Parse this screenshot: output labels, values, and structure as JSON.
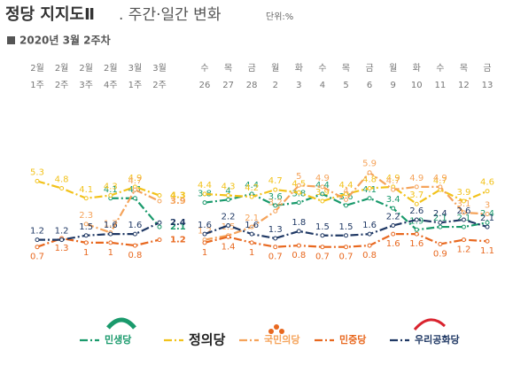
{
  "header": {
    "title": "정당 지지도Ⅱ",
    "subtitle": ". 주간·일간 변화",
    "unit": "단위:%",
    "date": "2020년 3월 2주차"
  },
  "chart_data": [
    {
      "type": "line",
      "categories": [
        [
          "2월",
          "1주"
        ],
        [
          "2월",
          "2주"
        ],
        [
          "2월",
          "3주"
        ],
        [
          "2월",
          "4주"
        ],
        [
          "3월",
          "1주"
        ],
        [
          "3월",
          "2주"
        ]
      ],
      "ylim": [
        0,
        6.5
      ],
      "series": [
        {
          "name": "민생당",
          "color": "#1a9a6c",
          "values": [
            null,
            null,
            null,
            4.1,
            4.1,
            2.1
          ]
        },
        {
          "name": "정의당",
          "color": "#f2c21b",
          "values": [
            5.3,
            4.8,
            4.1,
            4.3,
            4.9,
            4.3
          ]
        },
        {
          "name": "국민의당",
          "color": "#f5a35a",
          "values": [
            null,
            null,
            2.3,
            1.7,
            4.7,
            3.9
          ]
        },
        {
          "name": "민중당",
          "color": "#e8681f",
          "values": [
            0.7,
            1.3,
            1.0,
            1.0,
            0.8,
            1.2
          ]
        },
        {
          "name": "우리공화당",
          "color": "#1f3864",
          "values": [
            1.2,
            1.2,
            1.5,
            1.6,
            1.6,
            2.4
          ]
        }
      ]
    },
    {
      "type": "line",
      "categories": [
        [
          "수",
          "26"
        ],
        [
          "목",
          "27"
        ],
        [
          "금",
          "28"
        ],
        [
          "월",
          "2"
        ],
        [
          "화",
          "3"
        ],
        [
          "수",
          "4"
        ],
        [
          "목",
          "5"
        ],
        [
          "금",
          "6"
        ],
        [
          "월",
          "9"
        ],
        [
          "화",
          "10"
        ],
        [
          "수",
          "11"
        ],
        [
          "목",
          "12"
        ],
        [
          "금",
          "13"
        ]
      ],
      "ylim": [
        0,
        6.5
      ],
      "series": [
        {
          "name": "민생당",
          "color": "#1a9a6c",
          "values": [
            3.8,
            4.0,
            4.4,
            3.6,
            3.8,
            4.4,
            3.6,
            4.1,
            3.4,
            1.9,
            2.1,
            2.1,
            2.4
          ]
        },
        {
          "name": "정의당",
          "color": "#f2c21b",
          "values": [
            4.4,
            4.3,
            4.2,
            4.7,
            4.5,
            3.9,
            4.4,
            4.8,
            4.9,
            3.7,
            4.7,
            3.9,
            4.6
          ]
        },
        {
          "name": "국민의당",
          "color": "#f5a35a",
          "values": [
            1.2,
            1.5,
            2.1,
            3.2,
            5.0,
            4.9,
            4.0,
            5.9,
            4.7,
            4.9,
            4.9,
            3.1,
            3.0
          ]
        },
        {
          "name": "민중당",
          "color": "#e8681f",
          "values": [
            1.0,
            1.4,
            1.0,
            0.7,
            0.8,
            0.7,
            0.7,
            0.8,
            1.6,
            1.6,
            0.9,
            1.2,
            1.1
          ]
        },
        {
          "name": "우리공화당",
          "color": "#1f3864",
          "values": [
            1.6,
            2.2,
            1.6,
            1.3,
            1.8,
            1.5,
            1.5,
            1.6,
            2.2,
            2.6,
            2.4,
            2.6,
            2.1
          ]
        }
      ]
    }
  ]
}
